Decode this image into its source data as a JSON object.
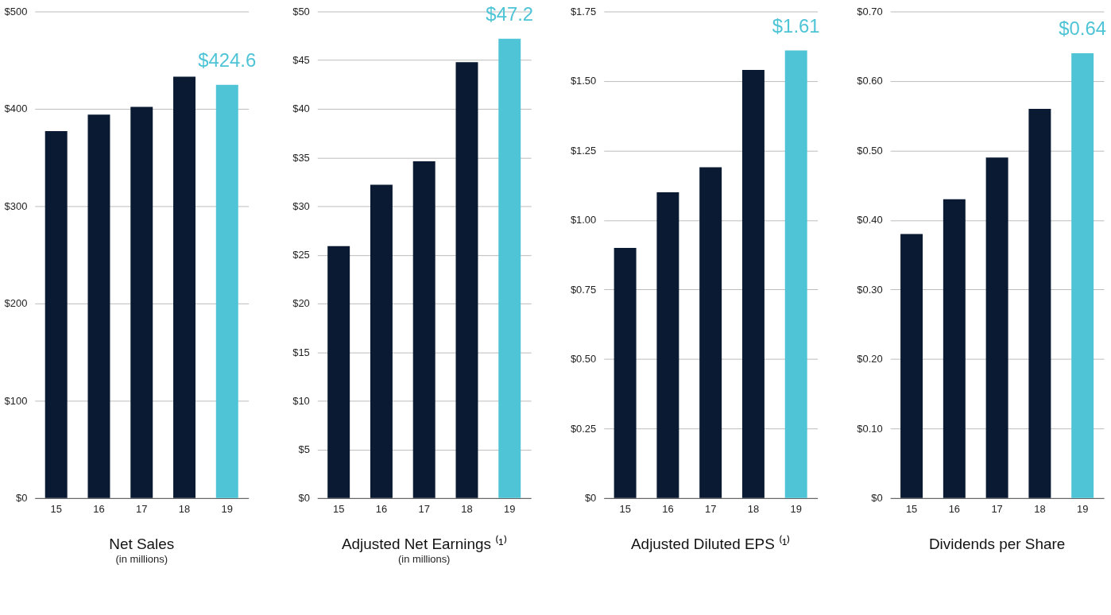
{
  "chart_data": [
    {
      "type": "bar",
      "title": "Net Sales",
      "subtitle": "(in millions)",
      "categories": [
        "15",
        "16",
        "17",
        "18",
        "19"
      ],
      "values": [
        377,
        394,
        402,
        433,
        424.6
      ],
      "colors": [
        "#0a1a33",
        "#0a1a33",
        "#0a1a33",
        "#0a1a33",
        "#4fc4d6"
      ],
      "value_labels": [
        null,
        null,
        null,
        null,
        "$424.6"
      ],
      "ylim": [
        0,
        500
      ],
      "yticks": [
        {
          "value": 0,
          "label": "$0"
        },
        {
          "value": 100,
          "label": "$100"
        },
        {
          "value": 200,
          "label": "$200"
        },
        {
          "value": 300,
          "label": "$300"
        },
        {
          "value": 400,
          "label": "$400"
        },
        {
          "value": 500,
          "label": "$500"
        }
      ],
      "grid": "y"
    },
    {
      "type": "bar",
      "title": "Adjusted Net Earnings ⁽¹⁾",
      "subtitle": "(in millions)",
      "categories": [
        "15",
        "16",
        "17",
        "18",
        "19"
      ],
      "values": [
        25.9,
        32.2,
        34.6,
        44.8,
        47.2
      ],
      "colors": [
        "#0a1a33",
        "#0a1a33",
        "#0a1a33",
        "#0a1a33",
        "#4fc4d6"
      ],
      "value_labels": [
        null,
        null,
        null,
        null,
        "$47.2"
      ],
      "ylim": [
        0,
        50
      ],
      "yticks": [
        {
          "value": 0,
          "label": "$0"
        },
        {
          "value": 5,
          "label": "$5"
        },
        {
          "value": 10,
          "label": "$10"
        },
        {
          "value": 15,
          "label": "$15"
        },
        {
          "value": 20,
          "label": "$20"
        },
        {
          "value": 25,
          "label": "$25"
        },
        {
          "value": 30,
          "label": "$30"
        },
        {
          "value": 35,
          "label": "$35"
        },
        {
          "value": 40,
          "label": "$40"
        },
        {
          "value": 45,
          "label": "$45"
        },
        {
          "value": 50,
          "label": "$50"
        }
      ],
      "grid": "y"
    },
    {
      "type": "bar",
      "title": "Adjusted Diluted EPS ⁽¹⁾",
      "categories": [
        "15",
        "16",
        "17",
        "18",
        "19"
      ],
      "values": [
        0.9,
        1.1,
        1.19,
        1.54,
        1.61
      ],
      "colors": [
        "#0a1a33",
        "#0a1a33",
        "#0a1a33",
        "#0a1a33",
        "#4fc4d6"
      ],
      "value_labels": [
        null,
        null,
        null,
        null,
        "$1.61"
      ],
      "ylim": [
        0,
        1.75
      ],
      "yticks": [
        {
          "value": 0,
          "label": "$0"
        },
        {
          "value": 0.25,
          "label": "$0.25"
        },
        {
          "value": 0.5,
          "label": "$0.50"
        },
        {
          "value": 0.75,
          "label": "$0.75"
        },
        {
          "value": 1,
          "label": "$1.00"
        },
        {
          "value": 1.25,
          "label": "$1.25"
        },
        {
          "value": 1.5,
          "label": "$1.50"
        },
        {
          "value": 1.75,
          "label": "$1.75"
        }
      ],
      "grid": "y"
    },
    {
      "type": "bar",
      "title": "Dividends per Share",
      "categories": [
        "15",
        "16",
        "17",
        "18",
        "19"
      ],
      "values": [
        0.38,
        0.43,
        0.49,
        0.56,
        0.64
      ],
      "colors": [
        "#0a1a33",
        "#0a1a33",
        "#0a1a33",
        "#0a1a33",
        "#4fc4d6"
      ],
      "value_labels": [
        null,
        null,
        null,
        null,
        "$0.64"
      ],
      "ylim": [
        0,
        0.7
      ],
      "yticks": [
        {
          "value": 0,
          "label": "$0"
        },
        {
          "value": 0.1,
          "label": "$0.10"
        },
        {
          "value": 0.2,
          "label": "$0.20"
        },
        {
          "value": 0.3,
          "label": "$0.30"
        },
        {
          "value": 0.4,
          "label": "$0.40"
        },
        {
          "value": 0.5,
          "label": "$0.50"
        },
        {
          "value": 0.6,
          "label": "$0.60"
        },
        {
          "value": 0.7,
          "label": "$0.70"
        }
      ],
      "grid": "y"
    }
  ]
}
